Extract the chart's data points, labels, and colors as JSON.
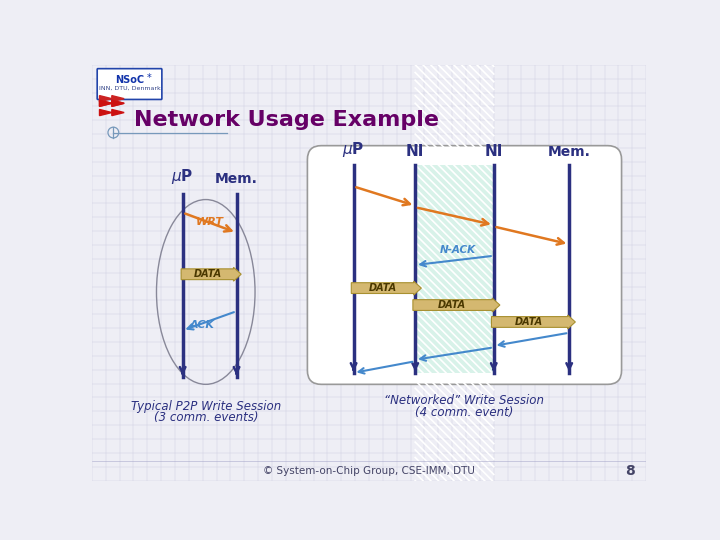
{
  "bg_color": "#eeeef5",
  "grid_color": "#c8c8d8",
  "title": "Network Usage Example",
  "title_color": "#660066",
  "title_fontsize": 16,
  "footer": "© System-on-Chip Group, CSE-IMM, DTU",
  "page_num": "8",
  "left_caption_1": "Typical P2P Write Session",
  "left_caption_2": "(3 comm. events)",
  "right_caption_1": "“Networked” Write Session",
  "right_caption_2": "(4 comm. event)",
  "dark_navy": "#2b3080",
  "orange_color": "#e07820",
  "blue_arrow_color": "#4488cc",
  "data_arrow_color": "#d4b870",
  "data_arrow_edge": "#a89030",
  "hatch_fill": "#b8e8d8",
  "ellipse_color": "#888899"
}
